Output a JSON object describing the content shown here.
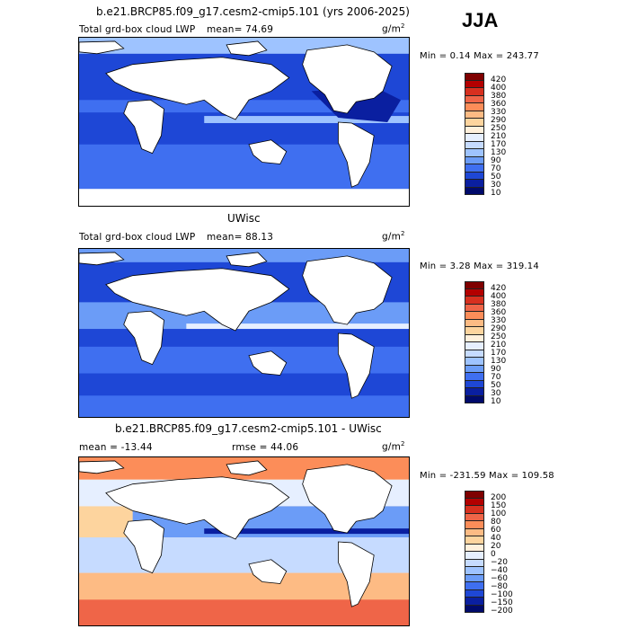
{
  "season": "JJA",
  "units_prefix": "g/m",
  "units_exp": "2",
  "panels": [
    {
      "title": "b.e21.BRCP85.f09_g17.cesm2-cmip5.101 (yrs 2006-2025)",
      "variable": "Total grd-box cloud LWP",
      "stat_left": "mean=  74.69",
      "stat_right": "",
      "min_max": "Min =    0.14 Max = 243.77",
      "colorbar": {
        "labels": [
          "420",
          "400",
          "380",
          "360",
          "330",
          "290",
          "250",
          "210",
          "170",
          "130",
          "90",
          "70",
          "50",
          "30",
          "10"
        ],
        "colors": [
          "#7f0000",
          "#b30000",
          "#d7301f",
          "#ef6548",
          "#fc8d59",
          "#fdbb84",
          "#fdd49e",
          "#fff0dc",
          "#e6efff",
          "#c6dbff",
          "#9ec3ff",
          "#6b9cf7",
          "#3f6ff0",
          "#1e47d6",
          "#0a1fa0",
          "#000a6b"
        ]
      }
    },
    {
      "title": "UWisc",
      "variable": "Total grd-box cloud LWP",
      "stat_left": "mean=  88.13",
      "stat_right": "",
      "min_max": "Min =    3.28 Max = 319.14",
      "colorbar": {
        "labels": [
          "420",
          "400",
          "380",
          "360",
          "330",
          "290",
          "250",
          "210",
          "170",
          "130",
          "90",
          "70",
          "50",
          "30",
          "10"
        ],
        "colors": [
          "#7f0000",
          "#b30000",
          "#d7301f",
          "#ef6548",
          "#fc8d59",
          "#fdbb84",
          "#fdd49e",
          "#fff0dc",
          "#e6efff",
          "#c6dbff",
          "#9ec3ff",
          "#6b9cf7",
          "#3f6ff0",
          "#1e47d6",
          "#0a1fa0",
          "#000a6b"
        ]
      }
    },
    {
      "title": "b.e21.BRCP85.f09_g17.cesm2-cmip5.101 - UWisc",
      "variable": "",
      "stat_left": "mean = -13.44",
      "stat_right": "rmse =  44.06",
      "min_max": "Min = -231.59 Max = 109.58",
      "colorbar": {
        "labels": [
          "200",
          "150",
          "100",
          "80",
          "60",
          "40",
          "20",
          "0",
          "−20",
          "−40",
          "−60",
          "−80",
          "−100",
          "−150",
          "−200"
        ],
        "colors": [
          "#7f0000",
          "#b30000",
          "#d7301f",
          "#ef6548",
          "#fc8d59",
          "#fdbb84",
          "#fdd49e",
          "#fff0dc",
          "#e6efff",
          "#c6dbff",
          "#9ec3ff",
          "#6b9cf7",
          "#3f6ff0",
          "#1e47d6",
          "#0a1fa0",
          "#000a6b"
        ]
      }
    }
  ]
}
